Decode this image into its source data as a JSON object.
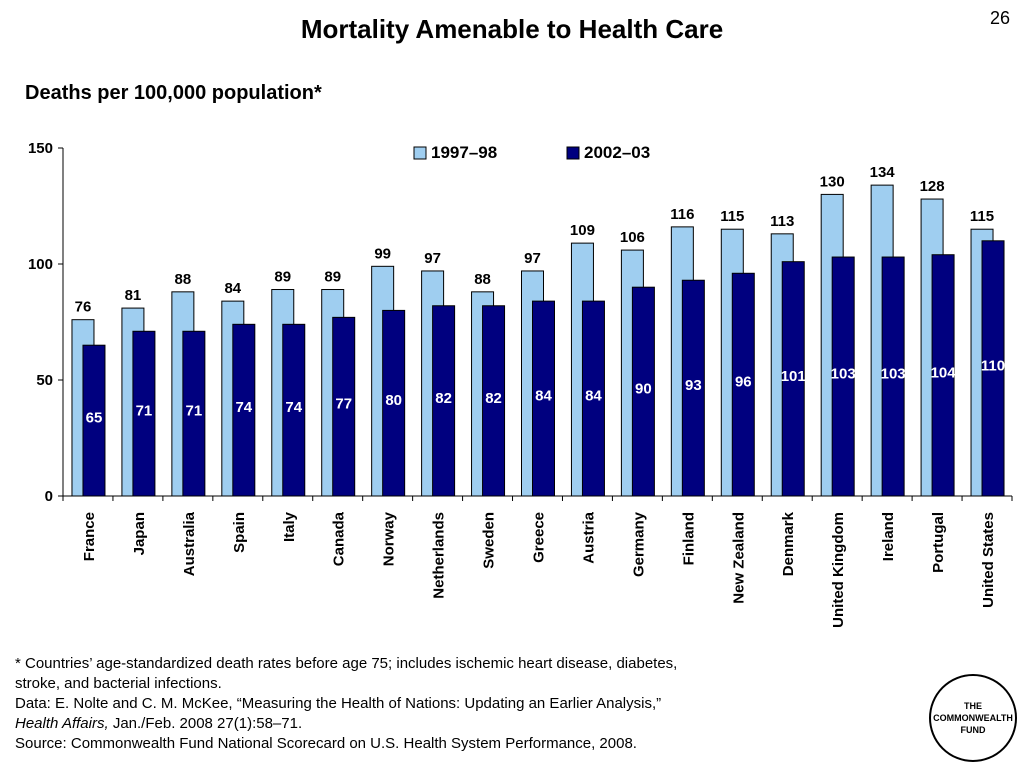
{
  "slide_number": "26",
  "title": "Mortality Amenable to Health Care",
  "subtitle": "Deaths per 100,000 population*",
  "chart_data": {
    "type": "bar",
    "categories": [
      "France",
      "Japan",
      "Australia",
      "Spain",
      "Italy",
      "Canada",
      "Norway",
      "Netherlands",
      "Sweden",
      "Greece",
      "Austria",
      "Germany",
      "Finland",
      "New Zealand",
      "Denmark",
      "United Kingdom",
      "Ireland",
      "Portugal",
      "United States"
    ],
    "series": [
      {
        "name": "1997–98",
        "color": "#9fcef0",
        "values": [
          76,
          81,
          88,
          84,
          89,
          89,
          99,
          97,
          88,
          97,
          109,
          106,
          116,
          115,
          113,
          130,
          134,
          128,
          115
        ]
      },
      {
        "name": "2002–03",
        "color": "#00007f",
        "values": [
          65,
          71,
          71,
          74,
          74,
          77,
          80,
          82,
          82,
          84,
          84,
          90,
          93,
          96,
          101,
          103,
          103,
          104,
          110
        ]
      }
    ],
    "ylim": [
      0,
      150
    ],
    "yticks": [
      "0",
      "50",
      "100",
      "150"
    ],
    "legend_position": "top-center",
    "grid": false
  },
  "footnote": {
    "line1": "* Countries’ age-standardized death rates before age 75; includes ischemic heart disease, diabetes,",
    "line2": "stroke, and bacterial infections.",
    "line3": "Data: E. Nolte and C. M. McKee, “Measuring the Health of Nations: Updating an Earlier Analysis,”",
    "line4_italic": "Health Affairs,",
    "line4_rest": " Jan./Feb. 2008 27(1):58–71.",
    "line5": "Source: Commonwealth Fund National Scorecard on U.S. Health System Performance, 2008."
  },
  "logo_text": "THE\nCOMMONWEALTH\nFUND"
}
